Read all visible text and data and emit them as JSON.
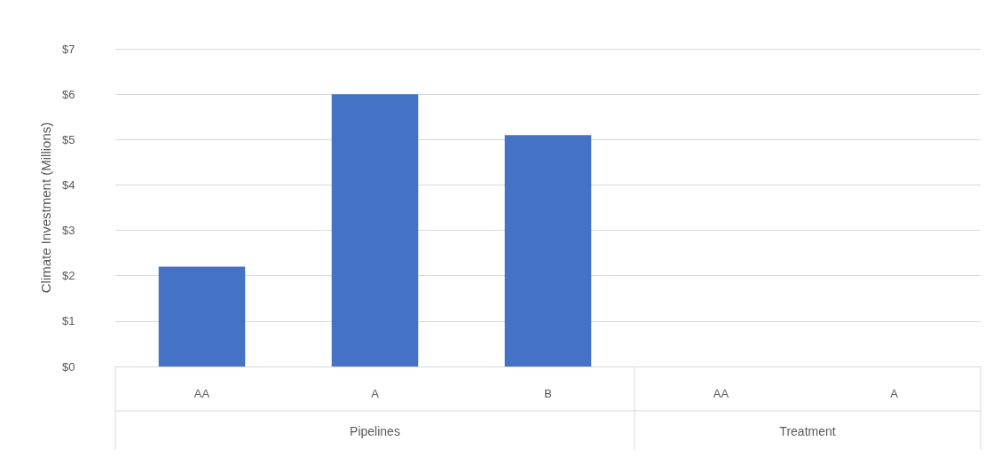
{
  "chart_data": {
    "type": "bar",
    "ylabel": "Climate Investment (Millions)",
    "categories": [
      "AA",
      "A",
      "B",
      "AA",
      "A"
    ],
    "values": [
      2.2,
      6.0,
      5.1,
      0,
      0
    ],
    "color": "#4472c4",
    "annotations": [
      "Pipelines",
      "Treatment"
    ],
    "ylim": [
      0,
      7
    ],
    "yticks": [
      {
        "value": 0,
        "label": "$0"
      },
      {
        "value": 1,
        "label": "$1"
      },
      {
        "value": 2,
        "label": "$2"
      },
      {
        "value": 3,
        "label": "$3"
      },
      {
        "value": 4,
        "label": "$4"
      },
      {
        "value": 5,
        "label": "$5"
      },
      {
        "value": 6,
        "label": "$6"
      },
      {
        "value": 7,
        "label": "$7"
      }
    ],
    "grid": true
  }
}
